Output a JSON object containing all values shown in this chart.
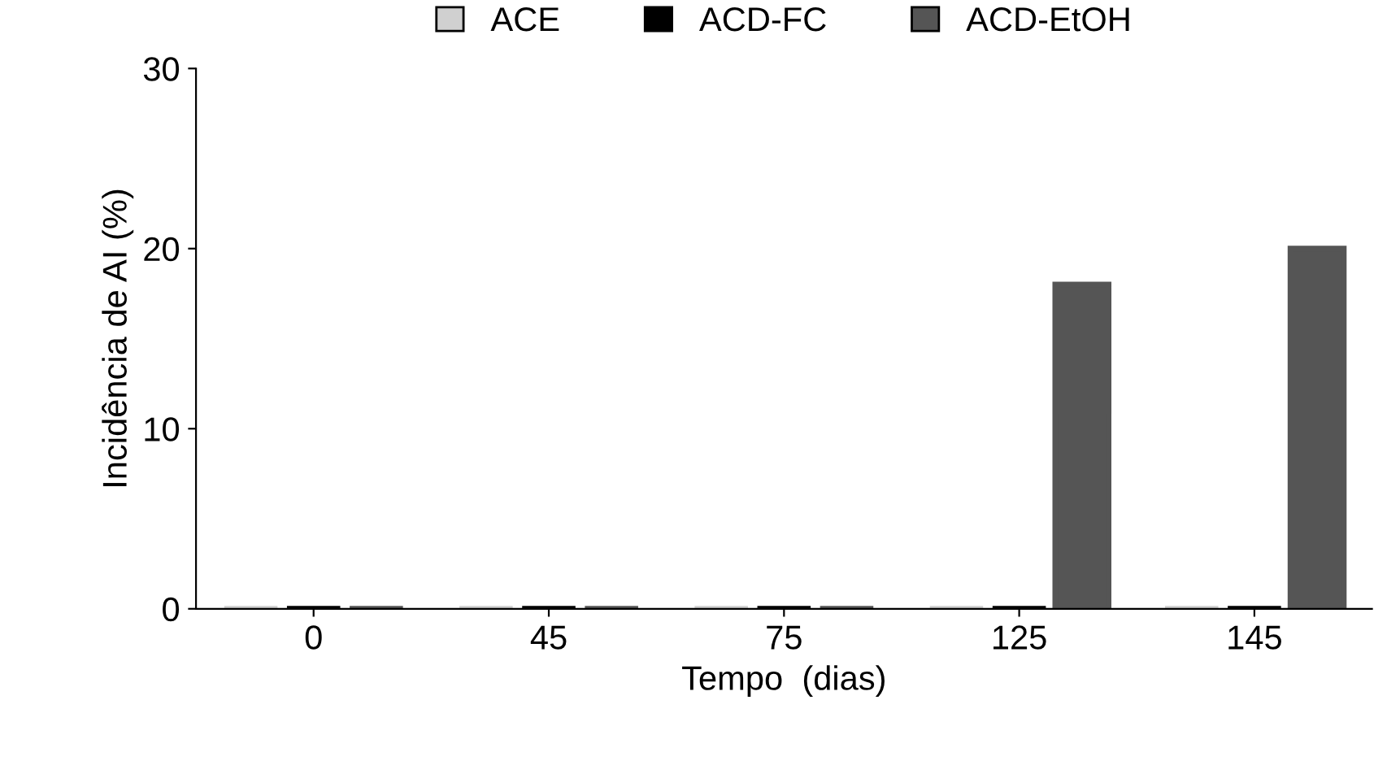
{
  "chart_data": {
    "type": "bar",
    "xlabel": "Tempo  (dias)",
    "ylabel": "Incidência de AI (%)",
    "categories": [
      "0",
      "45",
      "75",
      "125",
      "145"
    ],
    "series": [
      {
        "name": "ACE",
        "color": "#d0d0d0",
        "values": [
          0,
          0,
          0,
          0,
          0
        ]
      },
      {
        "name": "ACD-FC",
        "color": "#000000",
        "values": [
          0,
          0,
          0,
          0,
          0
        ]
      },
      {
        "name": "ACD-EtOH",
        "color": "#555555",
        "values": [
          0,
          0,
          0,
          18,
          20
        ]
      }
    ],
    "ylim": [
      0,
      30
    ],
    "yticks": [
      0,
      10,
      20,
      30
    ],
    "grid": false,
    "legend": "top"
  }
}
